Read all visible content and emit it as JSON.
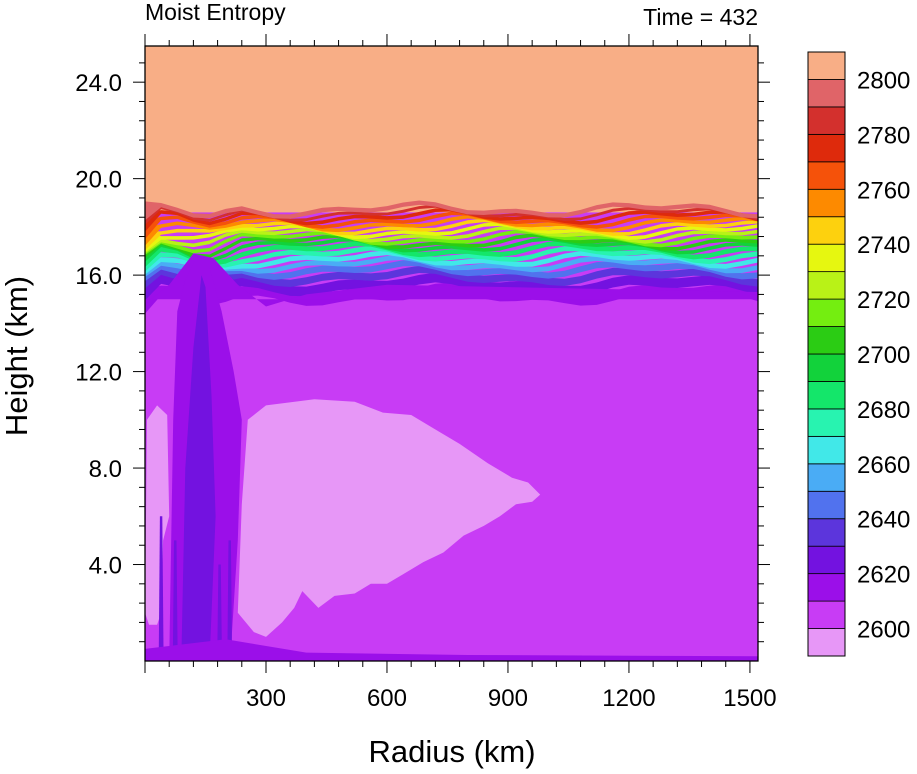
{
  "chart_data": {
    "type": "heatmap",
    "title": "Moist Entropy",
    "subtitle": "Time = 432",
    "xlabel": "Radius (km)",
    "ylabel": "Height (km)",
    "xlim": [
      0,
      1520
    ],
    "ylim": [
      0,
      25.5
    ],
    "x_ticks": [
      300,
      600,
      900,
      1200,
      1500
    ],
    "x_tick_labels": [
      "300",
      "600",
      "900",
      "1200",
      "1500"
    ],
    "y_ticks": [
      4,
      8,
      12,
      16,
      20,
      24
    ],
    "y_tick_labels": [
      "4.0",
      "8.0",
      "12.0",
      "16.0",
      "20.0",
      "24.0"
    ],
    "grid": false,
    "legend": "right colorbar",
    "colorbar": {
      "levels": [
        2600,
        2610,
        2620,
        2630,
        2640,
        2650,
        2660,
        2670,
        2680,
        2690,
        2700,
        2710,
        2720,
        2730,
        2740,
        2750,
        2760,
        2770,
        2780,
        2790,
        2800
      ],
      "labeled_levels": [
        2600,
        2620,
        2640,
        2660,
        2680,
        2700,
        2720,
        2740,
        2760,
        2780,
        2800
      ],
      "labels": [
        "2600",
        "2620",
        "2640",
        "2660",
        "2680",
        "2700",
        "2720",
        "2740",
        "2760",
        "2780",
        "2800"
      ],
      "colors": [
        "#e797f7",
        "#c83cf5",
        "#9b0fe9",
        "#7312e0",
        "#5c35dc",
        "#5172ee",
        "#4aacf5",
        "#41e8e8",
        "#28f3b0",
        "#14e66a",
        "#12d23b",
        "#2bcc14",
        "#74ee10",
        "#b9f217",
        "#e6f710",
        "#fdd10e",
        "#fd8a00",
        "#f5520a",
        "#de2a0c",
        "#d3302d",
        "#e06468",
        "#f8ae86"
      ]
    },
    "regions": [
      {
        "level": 2800,
        "description": "upper layer",
        "y_range_km": [
          18.5,
          25.5
        ],
        "x_range_km": [
          0,
          1520
        ]
      },
      {
        "level": 2610,
        "description": "background",
        "y_range_km": [
          0,
          15
        ],
        "x_range_km": [
          0,
          1520
        ]
      },
      {
        "level": 2600,
        "description": "low-entropy mid-level pool",
        "x_range_km": [
          230,
          980
        ],
        "y_range_km": [
          1.5,
          10.8
        ]
      },
      {
        "level": 2600,
        "description": "inner-core column",
        "x_range_km": [
          0,
          60
        ],
        "y_range_km": [
          1.5,
          10.5
        ]
      },
      {
        "level": 2620,
        "description": "eyewall plume",
        "x_range_km": [
          60,
          240
        ],
        "y_range_km": [
          0,
          16.8
        ]
      }
    ],
    "gradient_band_y_km": [
      15,
      18.8
    ]
  }
}
